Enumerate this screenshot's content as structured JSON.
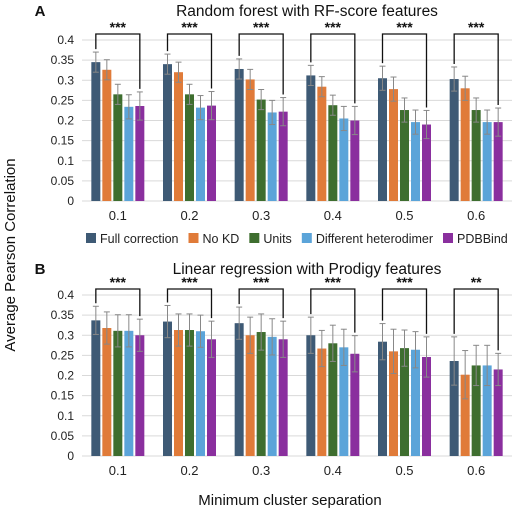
{
  "ylabel": "Average Pearson Correlation",
  "xlabel": "Minimum cluster separation",
  "colors": [
    "#3e5a75",
    "#e07b39",
    "#3e6e2f",
    "#5ba4d9",
    "#8a2f9e"
  ],
  "legend": [
    "Full correction",
    "No KD",
    "Units",
    "Different heterodimer",
    "PDBBind"
  ],
  "chart_data": [
    {
      "type": "bar",
      "panel": "A",
      "title": "Random forest with RF-score features",
      "categories": [
        "0.1",
        "0.2",
        "0.3",
        "0.4",
        "0.5",
        "0.6"
      ],
      "yticks": [
        "0",
        "0.05",
        "0.1",
        "0.15",
        "0.2",
        "0.25",
        "0.3",
        "0.35",
        "0.4"
      ],
      "ylim": [
        0,
        0.4
      ],
      "grid": true,
      "series": [
        {
          "name": "Full correction",
          "values": [
            0.345,
            0.34,
            0.328,
            0.312,
            0.305,
            0.303
          ],
          "err": [
            0.025,
            0.025,
            0.025,
            0.025,
            0.03,
            0.03
          ]
        },
        {
          "name": "No KD",
          "values": [
            0.326,
            0.32,
            0.302,
            0.284,
            0.278,
            0.28
          ],
          "err": [
            0.025,
            0.025,
            0.025,
            0.025,
            0.03,
            0.03
          ]
        },
        {
          "name": "Units",
          "values": [
            0.265,
            0.265,
            0.252,
            0.238,
            0.226,
            0.226
          ],
          "err": [
            0.025,
            0.025,
            0.025,
            0.025,
            0.03,
            0.03
          ]
        },
        {
          "name": "Different heterodimer",
          "values": [
            0.234,
            0.232,
            0.22,
            0.205,
            0.196,
            0.196
          ],
          "err": [
            0.03,
            0.03,
            0.03,
            0.03,
            0.03,
            0.03
          ]
        },
        {
          "name": "PDBBind",
          "values": [
            0.236,
            0.237,
            0.222,
            0.2,
            0.19,
            0.196
          ],
          "err": [
            0.035,
            0.035,
            0.035,
            0.035,
            0.035,
            0.035
          ]
        }
      ],
      "annotations": [
        "***",
        "***",
        "***",
        "***",
        "***",
        "***"
      ]
    },
    {
      "type": "bar",
      "panel": "B",
      "title": "Linear regression with Prodigy features",
      "categories": [
        "0.1",
        "0.2",
        "0.3",
        "0.4",
        "0.5",
        "0.6"
      ],
      "yticks": [
        "0",
        "0.05",
        "0.1",
        "0.15",
        "0.2",
        "0.25",
        "0.3",
        "0.35",
        "0.4"
      ],
      "ylim": [
        0,
        0.4
      ],
      "grid": true,
      "series": [
        {
          "name": "Full correction",
          "values": [
            0.337,
            0.334,
            0.33,
            0.3,
            0.284,
            0.236
          ],
          "err": [
            0.035,
            0.04,
            0.04,
            0.045,
            0.045,
            0.06
          ]
        },
        {
          "name": "No KD",
          "values": [
            0.318,
            0.313,
            0.3,
            0.267,
            0.26,
            0.202
          ],
          "err": [
            0.04,
            0.04,
            0.045,
            0.045,
            0.055,
            0.06
          ]
        },
        {
          "name": "Units",
          "values": [
            0.311,
            0.313,
            0.308,
            0.28,
            0.268,
            0.225
          ],
          "err": [
            0.04,
            0.04,
            0.045,
            0.045,
            0.045,
            0.05
          ]
        },
        {
          "name": "Different heterodimer",
          "values": [
            0.311,
            0.31,
            0.296,
            0.27,
            0.264,
            0.225
          ],
          "err": [
            0.04,
            0.04,
            0.045,
            0.045,
            0.045,
            0.05
          ]
        },
        {
          "name": "PDBBind",
          "values": [
            0.3,
            0.29,
            0.29,
            0.254,
            0.246,
            0.215
          ],
          "err": [
            0.04,
            0.045,
            0.045,
            0.045,
            0.05,
            0.04
          ]
        }
      ],
      "annotations": [
        "***",
        "***",
        "***",
        "***",
        "***",
        "**"
      ]
    }
  ]
}
